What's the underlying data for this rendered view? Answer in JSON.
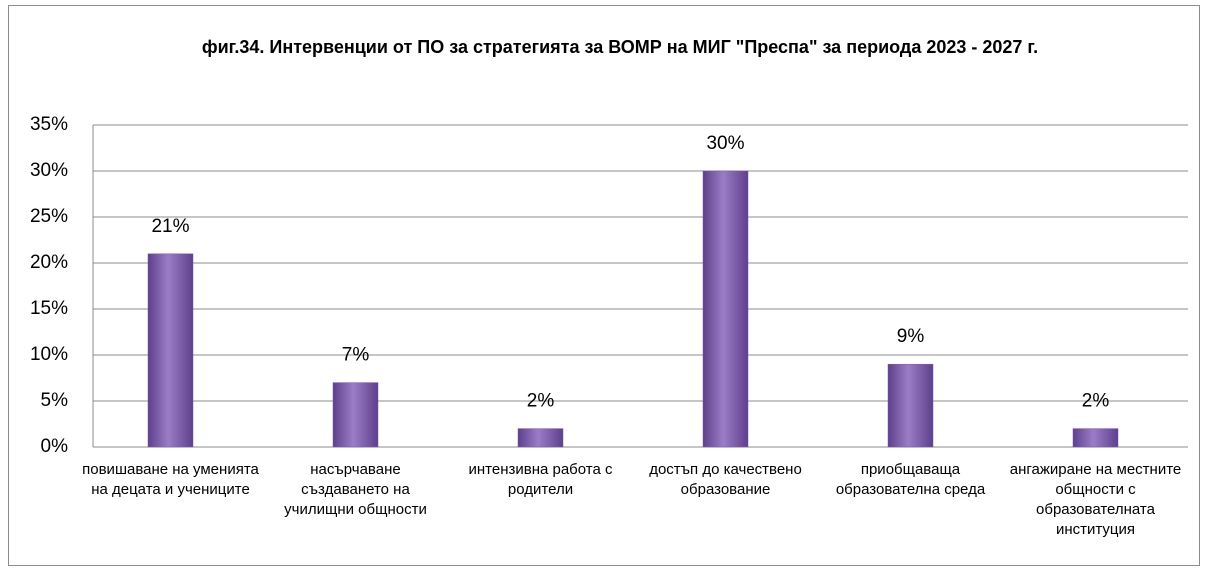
{
  "chart_data": {
    "type": "bar",
    "title": "фиг.34. Интервенции от ПО за стратегията за ВОМР на МИГ \"Преспа\" за периода 2023 - 2027 г.",
    "categories": [
      "повишаване на уменията на децата и учениците",
      "насърчаване създаването на училищни общности",
      "интензивна работа с родители",
      "достъп до качествено образование",
      "приобщаваща образователна среда",
      "ангажиране на местните общности с образователната институция"
    ],
    "values": [
      21,
      7,
      2,
      30,
      9,
      2
    ],
    "value_labels": [
      "21%",
      "7%",
      "2%",
      "30%",
      "9%",
      "2%"
    ],
    "color": "#7b5aa6",
    "ylim": [
      0,
      35
    ],
    "yticks": [
      {
        "value": 0,
        "label": "0%"
      },
      {
        "value": 5,
        "label": "5%"
      },
      {
        "value": 10,
        "label": "10%"
      },
      {
        "value": 15,
        "label": "15%"
      },
      {
        "value": 20,
        "label": "20%"
      },
      {
        "value": 25,
        "label": "25%"
      },
      {
        "value": 30,
        "label": "30%"
      },
      {
        "value": 35,
        "label": "35%"
      }
    ],
    "grid": true
  }
}
